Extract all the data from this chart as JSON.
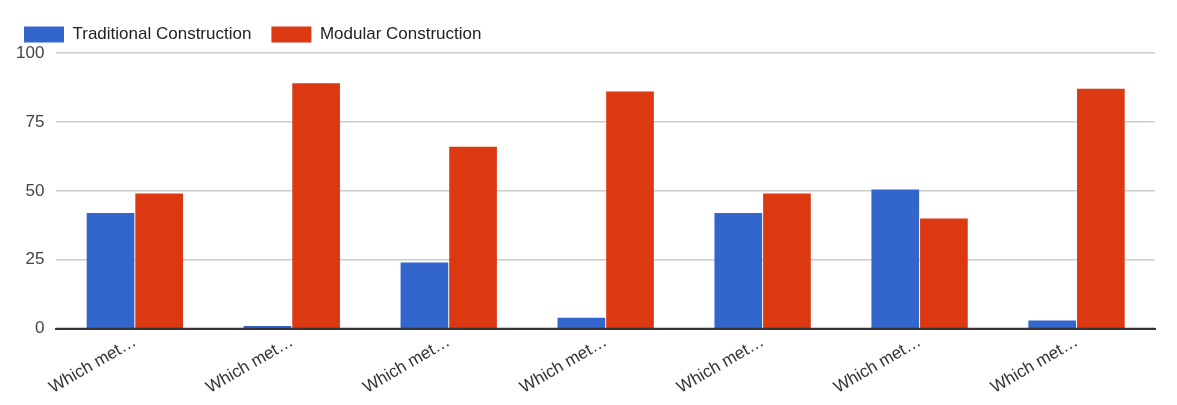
{
  "chart_data": {
    "type": "bar",
    "categories": [
      "Which met…",
      "Which met…",
      "Which met…",
      "Which met…",
      "Which met…",
      "Which met…",
      "Which met…"
    ],
    "series": [
      {
        "name": "Traditional Construction",
        "color": "#3366cc",
        "values": [
          42,
          1,
          24,
          4,
          42,
          50.5,
          3
        ]
      },
      {
        "name": "Modular Construction",
        "color": "#dc3912",
        "values": [
          49,
          89,
          66,
          86,
          49,
          40,
          87
        ]
      }
    ],
    "ylim": [
      0,
      100
    ],
    "yticks": [
      0,
      25,
      50,
      75,
      100
    ],
    "grid": "y",
    "legend": "top left"
  }
}
